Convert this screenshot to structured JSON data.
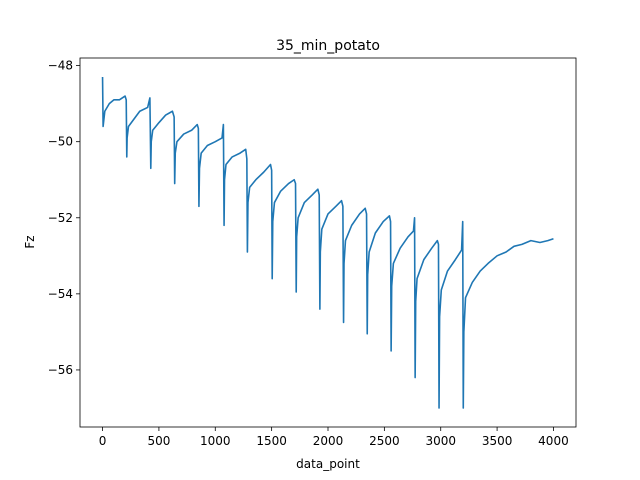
{
  "chart_data": {
    "type": "line",
    "title": "35_min_potato",
    "xlabel": "data_point",
    "ylabel": "Fz",
    "xlim": [
      -200,
      4200
    ],
    "ylim": [
      -57.5,
      -47.8
    ],
    "xticks": [
      0,
      500,
      1000,
      1500,
      2000,
      2500,
      3000,
      3500,
      4000
    ],
    "xtick_labels": [
      "0",
      "500",
      "1000",
      "1500",
      "2000",
      "2500",
      "3000",
      "3500",
      "4000"
    ],
    "yticks": [
      -56,
      -54,
      -52,
      -50,
      -48
    ],
    "ytick_labels": [
      "−56",
      "−54",
      "−52",
      "−50",
      "−48"
    ],
    "grid": false,
    "line_color": "#1f77b4",
    "series": [
      {
        "x": [
          0,
          5,
          20,
          60,
          100,
          150,
          200,
          210,
          215,
          218,
          230,
          280,
          330,
          400,
          420,
          428,
          432,
          445,
          500,
          560,
          620,
          635,
          640,
          645,
          660,
          720,
          790,
          840,
          850,
          855,
          860,
          875,
          930,
          1000,
          1060,
          1072,
          1078,
          1082,
          1095,
          1150,
          1220,
          1270,
          1280,
          1285,
          1290,
          1305,
          1360,
          1430,
          1490,
          1500,
          1505,
          1510,
          1525,
          1580,
          1650,
          1700,
          1712,
          1718,
          1722,
          1735,
          1790,
          1860,
          1910,
          1922,
          1928,
          1932,
          1945,
          2000,
          2070,
          2120,
          2132,
          2138,
          2142,
          2155,
          2210,
          2280,
          2330,
          2342,
          2348,
          2352,
          2365,
          2420,
          2490,
          2545,
          2555,
          2560,
          2565,
          2580,
          2640,
          2710,
          2758,
          2768,
          2773,
          2778,
          2790,
          2850,
          2920,
          2970,
          2980,
          2985,
          2990,
          3005,
          3060,
          3130,
          3185,
          3195,
          3200,
          3205,
          3220,
          3280,
          3350,
          3420,
          3500,
          3580,
          3650,
          3720,
          3800,
          3880,
          3950,
          4000
        ],
        "y": [
          -48.3,
          -49.6,
          -49.2,
          -49.0,
          -48.9,
          -48.9,
          -48.8,
          -48.9,
          -50.4,
          -49.9,
          -49.6,
          -49.4,
          -49.2,
          -49.1,
          -48.85,
          -50.7,
          -50.0,
          -49.7,
          -49.5,
          -49.3,
          -49.2,
          -49.35,
          -51.1,
          -50.3,
          -50.0,
          -49.8,
          -49.7,
          -49.55,
          -49.65,
          -51.7,
          -50.7,
          -50.3,
          -50.1,
          -50.0,
          -49.9,
          -49.55,
          -52.2,
          -51.0,
          -50.6,
          -50.4,
          -50.3,
          -50.2,
          -50.45,
          -52.9,
          -51.6,
          -51.2,
          -51.0,
          -50.8,
          -50.6,
          -50.75,
          -53.6,
          -52.1,
          -51.6,
          -51.3,
          -51.1,
          -51.0,
          -51.1,
          -53.95,
          -52.5,
          -52.0,
          -51.6,
          -51.4,
          -51.25,
          -51.4,
          -54.4,
          -52.9,
          -52.3,
          -51.9,
          -51.7,
          -51.55,
          -51.7,
          -54.75,
          -53.2,
          -52.6,
          -52.2,
          -51.9,
          -51.75,
          -51.9,
          -55.05,
          -53.5,
          -52.9,
          -52.4,
          -52.1,
          -51.95,
          -52.1,
          -55.5,
          -53.8,
          -53.2,
          -52.8,
          -52.5,
          -52.35,
          -52.0,
          -56.2,
          -54.2,
          -53.6,
          -53.1,
          -52.8,
          -52.6,
          -52.7,
          -57.0,
          -54.6,
          -53.9,
          -53.4,
          -53.1,
          -52.85,
          -52.1,
          -57.0,
          -55.0,
          -54.1,
          -53.7,
          -53.4,
          -53.2,
          -53.0,
          -52.9,
          -52.75,
          -52.7,
          -52.6,
          -52.65,
          -52.6,
          -52.55
        ]
      }
    ]
  }
}
